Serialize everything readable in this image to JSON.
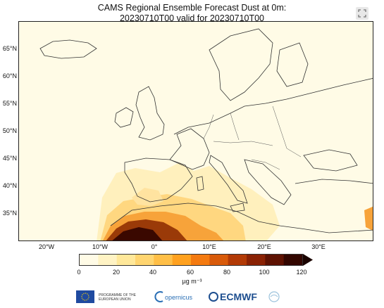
{
  "title": {
    "line1": "CAMS Regional Ensemble Forecast Dust at 0m:",
    "line2": "20230710T00 valid for 20230710T00"
  },
  "map": {
    "lat_labels": [
      "65°N",
      "60°N",
      "55°N",
      "50°N",
      "45°N",
      "40°N",
      "35°N"
    ],
    "lon_labels": [
      "20°W",
      "10°W",
      "0°",
      "10°E",
      "20°E",
      "30°E"
    ],
    "background_color": "#fffbe6"
  },
  "colorbar": {
    "tick_labels": [
      "0",
      "20",
      "40",
      "60",
      "80",
      "100",
      "120"
    ],
    "unit": "µg m⁻³",
    "colors": [
      "#fffbe6",
      "#fff3c4",
      "#ffe89a",
      "#ffd570",
      "#ffbf47",
      "#ffa11f",
      "#f47a10",
      "#d85a0a",
      "#b23a06",
      "#8a2204",
      "#5e1202",
      "#330600"
    ]
  },
  "footer": {
    "programme": "PROGRAMME OF THE EUROPEAN UNION",
    "copernicus": "opernicus",
    "ecmwf": "ECMWF"
  }
}
